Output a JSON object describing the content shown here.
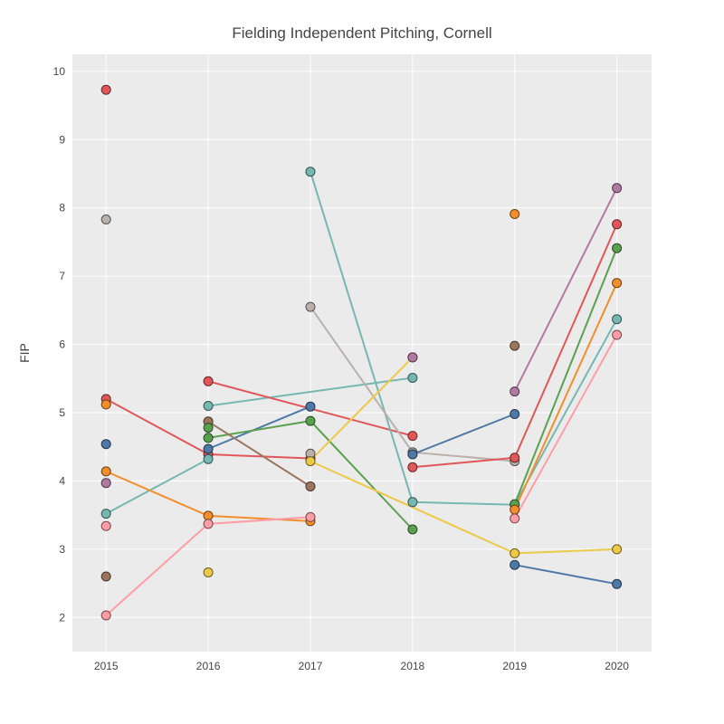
{
  "chart_data": {
    "type": "line",
    "title": "Fielding Independent Pitching, Cornell",
    "xlabel": "",
    "ylabel": "FIP",
    "x_ticks": [
      "2015",
      "2016",
      "2017",
      "2018",
      "2019",
      "2020"
    ],
    "y_ticks": [
      "2",
      "3",
      "4",
      "5",
      "6",
      "7",
      "8",
      "9",
      "10"
    ],
    "xlim": [
      2014.67,
      2020.34
    ],
    "ylim": [
      1.5,
      10.25
    ],
    "grid": true,
    "legend": "none",
    "series": [
      {
        "color": "#e15759",
        "points": [
          [
            2015,
            5.2
          ],
          [
            2016,
            4.39
          ],
          [
            2017,
            4.33
          ]
        ]
      },
      {
        "color": "#4e79a7",
        "points": [
          [
            2016,
            4.47
          ],
          [
            2017,
            5.09
          ]
        ]
      },
      {
        "color": "#76b7b2",
        "points": [
          [
            2016,
            5.1
          ],
          [
            2018,
            5.51
          ]
        ]
      },
      {
        "color": "#e15759",
        "points": [
          [
            2016,
            5.46
          ],
          [
            2018,
            4.66
          ]
        ]
      },
      {
        "color": "#59a14f",
        "points": [
          [
            2016,
            4.63
          ],
          [
            2017,
            4.88
          ],
          [
            2018,
            3.29
          ]
        ]
      },
      {
        "color": "#9c755f",
        "points": [
          [
            2016,
            4.87
          ],
          [
            2017,
            3.92
          ]
        ]
      },
      {
        "color": "#59a14f",
        "points": [
          [
            2016,
            4.78
          ]
        ]
      },
      {
        "color": "#edc948",
        "points": [
          [
            2016,
            2.66
          ]
        ]
      },
      {
        "color": "#76b7b2",
        "points": [
          [
            2015,
            3.52
          ],
          [
            2016,
            4.32
          ]
        ]
      },
      {
        "color": "#76b7b2",
        "points": [
          [
            2017,
            8.53
          ],
          [
            2018,
            3.69
          ],
          [
            2019,
            3.65
          ],
          [
            2020,
            6.37
          ]
        ]
      },
      {
        "color": "#bab0ac",
        "points": [
          [
            2017,
            6.55
          ],
          [
            2018,
            4.42
          ],
          [
            2019,
            4.29
          ]
        ]
      },
      {
        "color": "#f28e2b",
        "points": [
          [
            2015,
            4.14
          ],
          [
            2016,
            3.49
          ],
          [
            2017,
            3.41
          ]
        ]
      },
      {
        "color": "#ff9da7",
        "points": [
          [
            2015,
            2.03
          ],
          [
            2016,
            3.37
          ],
          [
            2017,
            3.47
          ]
        ]
      },
      {
        "color": "#edc948",
        "points": [
          [
            2017,
            4.3
          ],
          [
            2018,
            5.81
          ]
        ]
      },
      {
        "color": "#bab0ac",
        "points": [
          [
            2017,
            4.4
          ]
        ]
      },
      {
        "color": "#edc948",
        "points": [
          [
            2017,
            4.29
          ],
          [
            2019,
            2.94
          ],
          [
            2020,
            3.0
          ]
        ]
      },
      {
        "color": "#b07aa1",
        "points": [
          [
            2018,
            5.81
          ]
        ]
      },
      {
        "color": "#4e79a7",
        "points": [
          [
            2018,
            4.39
          ],
          [
            2019,
            4.98
          ]
        ]
      },
      {
        "color": "#e15759",
        "points": [
          [
            2018,
            4.2
          ],
          [
            2019,
            4.34
          ],
          [
            2020,
            7.76
          ]
        ]
      },
      {
        "color": "#4e79a7",
        "points": [
          [
            2019,
            2.77
          ],
          [
            2020,
            2.49
          ]
        ]
      },
      {
        "color": "#b07aa1",
        "points": [
          [
            2019,
            5.31
          ],
          [
            2020,
            8.29
          ]
        ]
      },
      {
        "color": "#59a14f",
        "points": [
          [
            2019,
            3.66
          ],
          [
            2020,
            7.41
          ]
        ]
      },
      {
        "color": "#f28e2b",
        "points": [
          [
            2019,
            3.58
          ],
          [
            2020,
            6.9
          ]
        ]
      },
      {
        "color": "#ff9da7",
        "points": [
          [
            2019,
            3.45
          ],
          [
            2020,
            6.14
          ]
        ]
      },
      {
        "color": "#f28e2b",
        "points": [
          [
            2019,
            7.91
          ]
        ]
      },
      {
        "color": "#9c755f",
        "points": [
          [
            2019,
            5.98
          ]
        ]
      },
      {
        "color": "#e15759",
        "points": [
          [
            2015,
            9.73
          ]
        ]
      },
      {
        "color": "#bab0ac",
        "points": [
          [
            2015,
            7.83
          ]
        ]
      },
      {
        "color": "#f28e2b",
        "points": [
          [
            2015,
            5.12
          ]
        ]
      },
      {
        "color": "#4e79a7",
        "points": [
          [
            2015,
            4.54
          ]
        ]
      },
      {
        "color": "#b07aa1",
        "points": [
          [
            2015,
            3.97
          ]
        ]
      },
      {
        "color": "#ff9da7",
        "points": [
          [
            2015,
            3.34
          ]
        ]
      },
      {
        "color": "#9c755f",
        "points": [
          [
            2015,
            2.6
          ]
        ]
      }
    ]
  }
}
